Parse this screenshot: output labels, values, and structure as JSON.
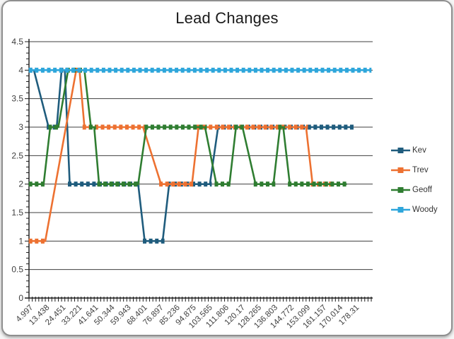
{
  "window": {
    "background_color": "#ffffff",
    "border_color": "#8f8f8f"
  },
  "chart_data": {
    "type": "line",
    "title": "Lead Changes",
    "xlabel": "",
    "ylabel": "",
    "ylim": [
      0,
      4.5
    ],
    "y_tick_step": 0.5,
    "y_minor_tick_step": 0.1,
    "y_tick_labels": [
      "4.5",
      "4",
      "3.5",
      "3",
      "2.5",
      "2",
      "1.5",
      "1",
      "0.5",
      "0"
    ],
    "grid": "horizontal",
    "gridline_color": "#3f3f3f",
    "axis_color": "#1a1a1a",
    "legend_position": "right",
    "n_categories": 105,
    "x_label_every": 5,
    "x_tick_labels": [
      "4.997",
      "13.438",
      "24.451",
      "33.221",
      "41.641",
      "50.344",
      "59.943",
      "68.401",
      "76.897",
      "85.236",
      "94.875",
      "103.565",
      "111.806",
      "120.17",
      "128.265",
      "136.803",
      "144.772",
      "153.099",
      "161.157",
      "170.014",
      "178.31"
    ],
    "series": [
      {
        "name": "Kev",
        "color": "#1F5C7D",
        "points": [
          [
            0,
            4
          ],
          [
            1,
            4
          ],
          [
            5.5,
            3
          ],
          [
            8,
            3
          ],
          [
            9.5,
            4
          ],
          [
            10.5,
            4
          ],
          [
            12,
            2
          ],
          [
            33,
            2
          ],
          [
            35,
            1
          ],
          [
            40.5,
            1
          ],
          [
            42.5,
            2
          ],
          [
            55,
            2
          ],
          [
            57.5,
            3
          ],
          [
            99,
            3
          ]
        ]
      },
      {
        "name": "Trev",
        "color": "#ED7131",
        "points": [
          [
            0,
            1
          ],
          [
            4.5,
            1
          ],
          [
            14,
            4
          ],
          [
            15,
            4
          ],
          [
            16.5,
            3
          ],
          [
            34.5,
            3
          ],
          [
            40,
            2
          ],
          [
            49.5,
            2
          ],
          [
            51.5,
            3
          ],
          [
            84.5,
            3
          ],
          [
            86.5,
            2
          ],
          [
            92,
            2
          ]
        ]
      },
      {
        "name": "Geoff",
        "color": "#2F7D31",
        "points": [
          [
            0,
            2
          ],
          [
            4,
            2
          ],
          [
            6,
            3
          ],
          [
            8.5,
            3
          ],
          [
            11.5,
            4
          ],
          [
            16.5,
            4
          ],
          [
            18.5,
            3
          ],
          [
            19.5,
            3
          ],
          [
            21,
            2
          ],
          [
            33,
            2
          ],
          [
            35.5,
            3
          ],
          [
            53.5,
            3
          ],
          [
            57,
            2
          ],
          [
            61,
            2
          ],
          [
            63,
            3
          ],
          [
            65,
            3
          ],
          [
            69,
            2
          ],
          [
            74.5,
            2
          ],
          [
            76.5,
            3
          ],
          [
            77.5,
            3
          ],
          [
            79.5,
            2
          ],
          [
            97,
            2
          ]
        ]
      },
      {
        "name": "Woody",
        "color": "#2EA6DB",
        "points": [
          [
            0,
            4
          ],
          [
            104,
            4
          ]
        ]
      }
    ]
  }
}
